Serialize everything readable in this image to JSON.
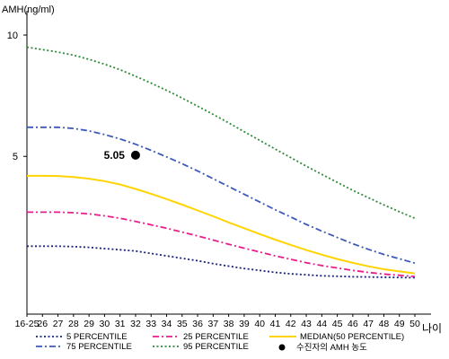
{
  "chart_data": {
    "type": "line",
    "ylabel": "AMH(ng/ml)",
    "xlabel": "나이",
    "categories": [
      "16-25",
      "26",
      "27",
      "28",
      "29",
      "30",
      "31",
      "32",
      "33",
      "34",
      "35",
      "36",
      "37",
      "38",
      "39",
      "40",
      "41",
      "42",
      "43",
      "44",
      "45",
      "46",
      "47",
      "48",
      "49",
      "50"
    ],
    "ylim": [
      -1.5,
      11
    ],
    "yticks": [
      5,
      10
    ],
    "grid": false,
    "legend_position": "bottom",
    "series": [
      {
        "name": "5 PERCENTILE",
        "style": "dotted",
        "color": "#1a237e",
        "values": [
          1.3,
          1.3,
          1.3,
          1.28,
          1.25,
          1.2,
          1.15,
          1.1,
          1.0,
          0.9,
          0.8,
          0.7,
          0.58,
          0.48,
          0.38,
          0.3,
          0.22,
          0.16,
          0.12,
          0.08,
          0.06,
          0.04,
          0.03,
          0.02,
          0.01,
          0.0
        ]
      },
      {
        "name": "25 PERCENTILE",
        "style": "dashdot",
        "color": "#e91e8c",
        "values": [
          2.7,
          2.7,
          2.7,
          2.68,
          2.63,
          2.55,
          2.45,
          2.32,
          2.18,
          2.04,
          1.88,
          1.72,
          1.55,
          1.38,
          1.22,
          1.06,
          0.9,
          0.76,
          0.62,
          0.5,
          0.4,
          0.3,
          0.22,
          0.15,
          0.1,
          0.05
        ]
      },
      {
        "name": "MEDIAN(50 PERCENTILE)",
        "style": "solid",
        "color": "#ffd400",
        "values": [
          4.2,
          4.2,
          4.19,
          4.15,
          4.08,
          3.98,
          3.84,
          3.66,
          3.46,
          3.24,
          3.01,
          2.77,
          2.53,
          2.28,
          2.04,
          1.8,
          1.57,
          1.35,
          1.14,
          0.95,
          0.77,
          0.61,
          0.47,
          0.35,
          0.26,
          0.18
        ]
      },
      {
        "name": "75 PERCENTILE",
        "style": "dashdot",
        "color": "#3d5ab8",
        "values": [
          6.2,
          6.2,
          6.2,
          6.15,
          6.05,
          5.9,
          5.72,
          5.5,
          5.25,
          4.98,
          4.7,
          4.4,
          4.08,
          3.76,
          3.44,
          3.12,
          2.8,
          2.5,
          2.2,
          1.92,
          1.66,
          1.4,
          1.17,
          0.96,
          0.78,
          0.6
        ]
      },
      {
        "name": "95 PERCENTILE",
        "style": "dotted",
        "color": "#2e8b3a",
        "values": [
          9.5,
          9.4,
          9.3,
          9.17,
          9.0,
          8.8,
          8.57,
          8.3,
          8.02,
          7.72,
          7.4,
          7.07,
          6.73,
          6.38,
          6.02,
          5.66,
          5.3,
          4.95,
          4.6,
          4.26,
          3.93,
          3.6,
          3.3,
          3.0,
          2.72,
          2.45
        ]
      }
    ],
    "annotation": {
      "label": "5.05",
      "category": "32",
      "value": 5.05
    },
    "marker_legend": {
      "label": "수진자의 AMH 농도"
    }
  }
}
